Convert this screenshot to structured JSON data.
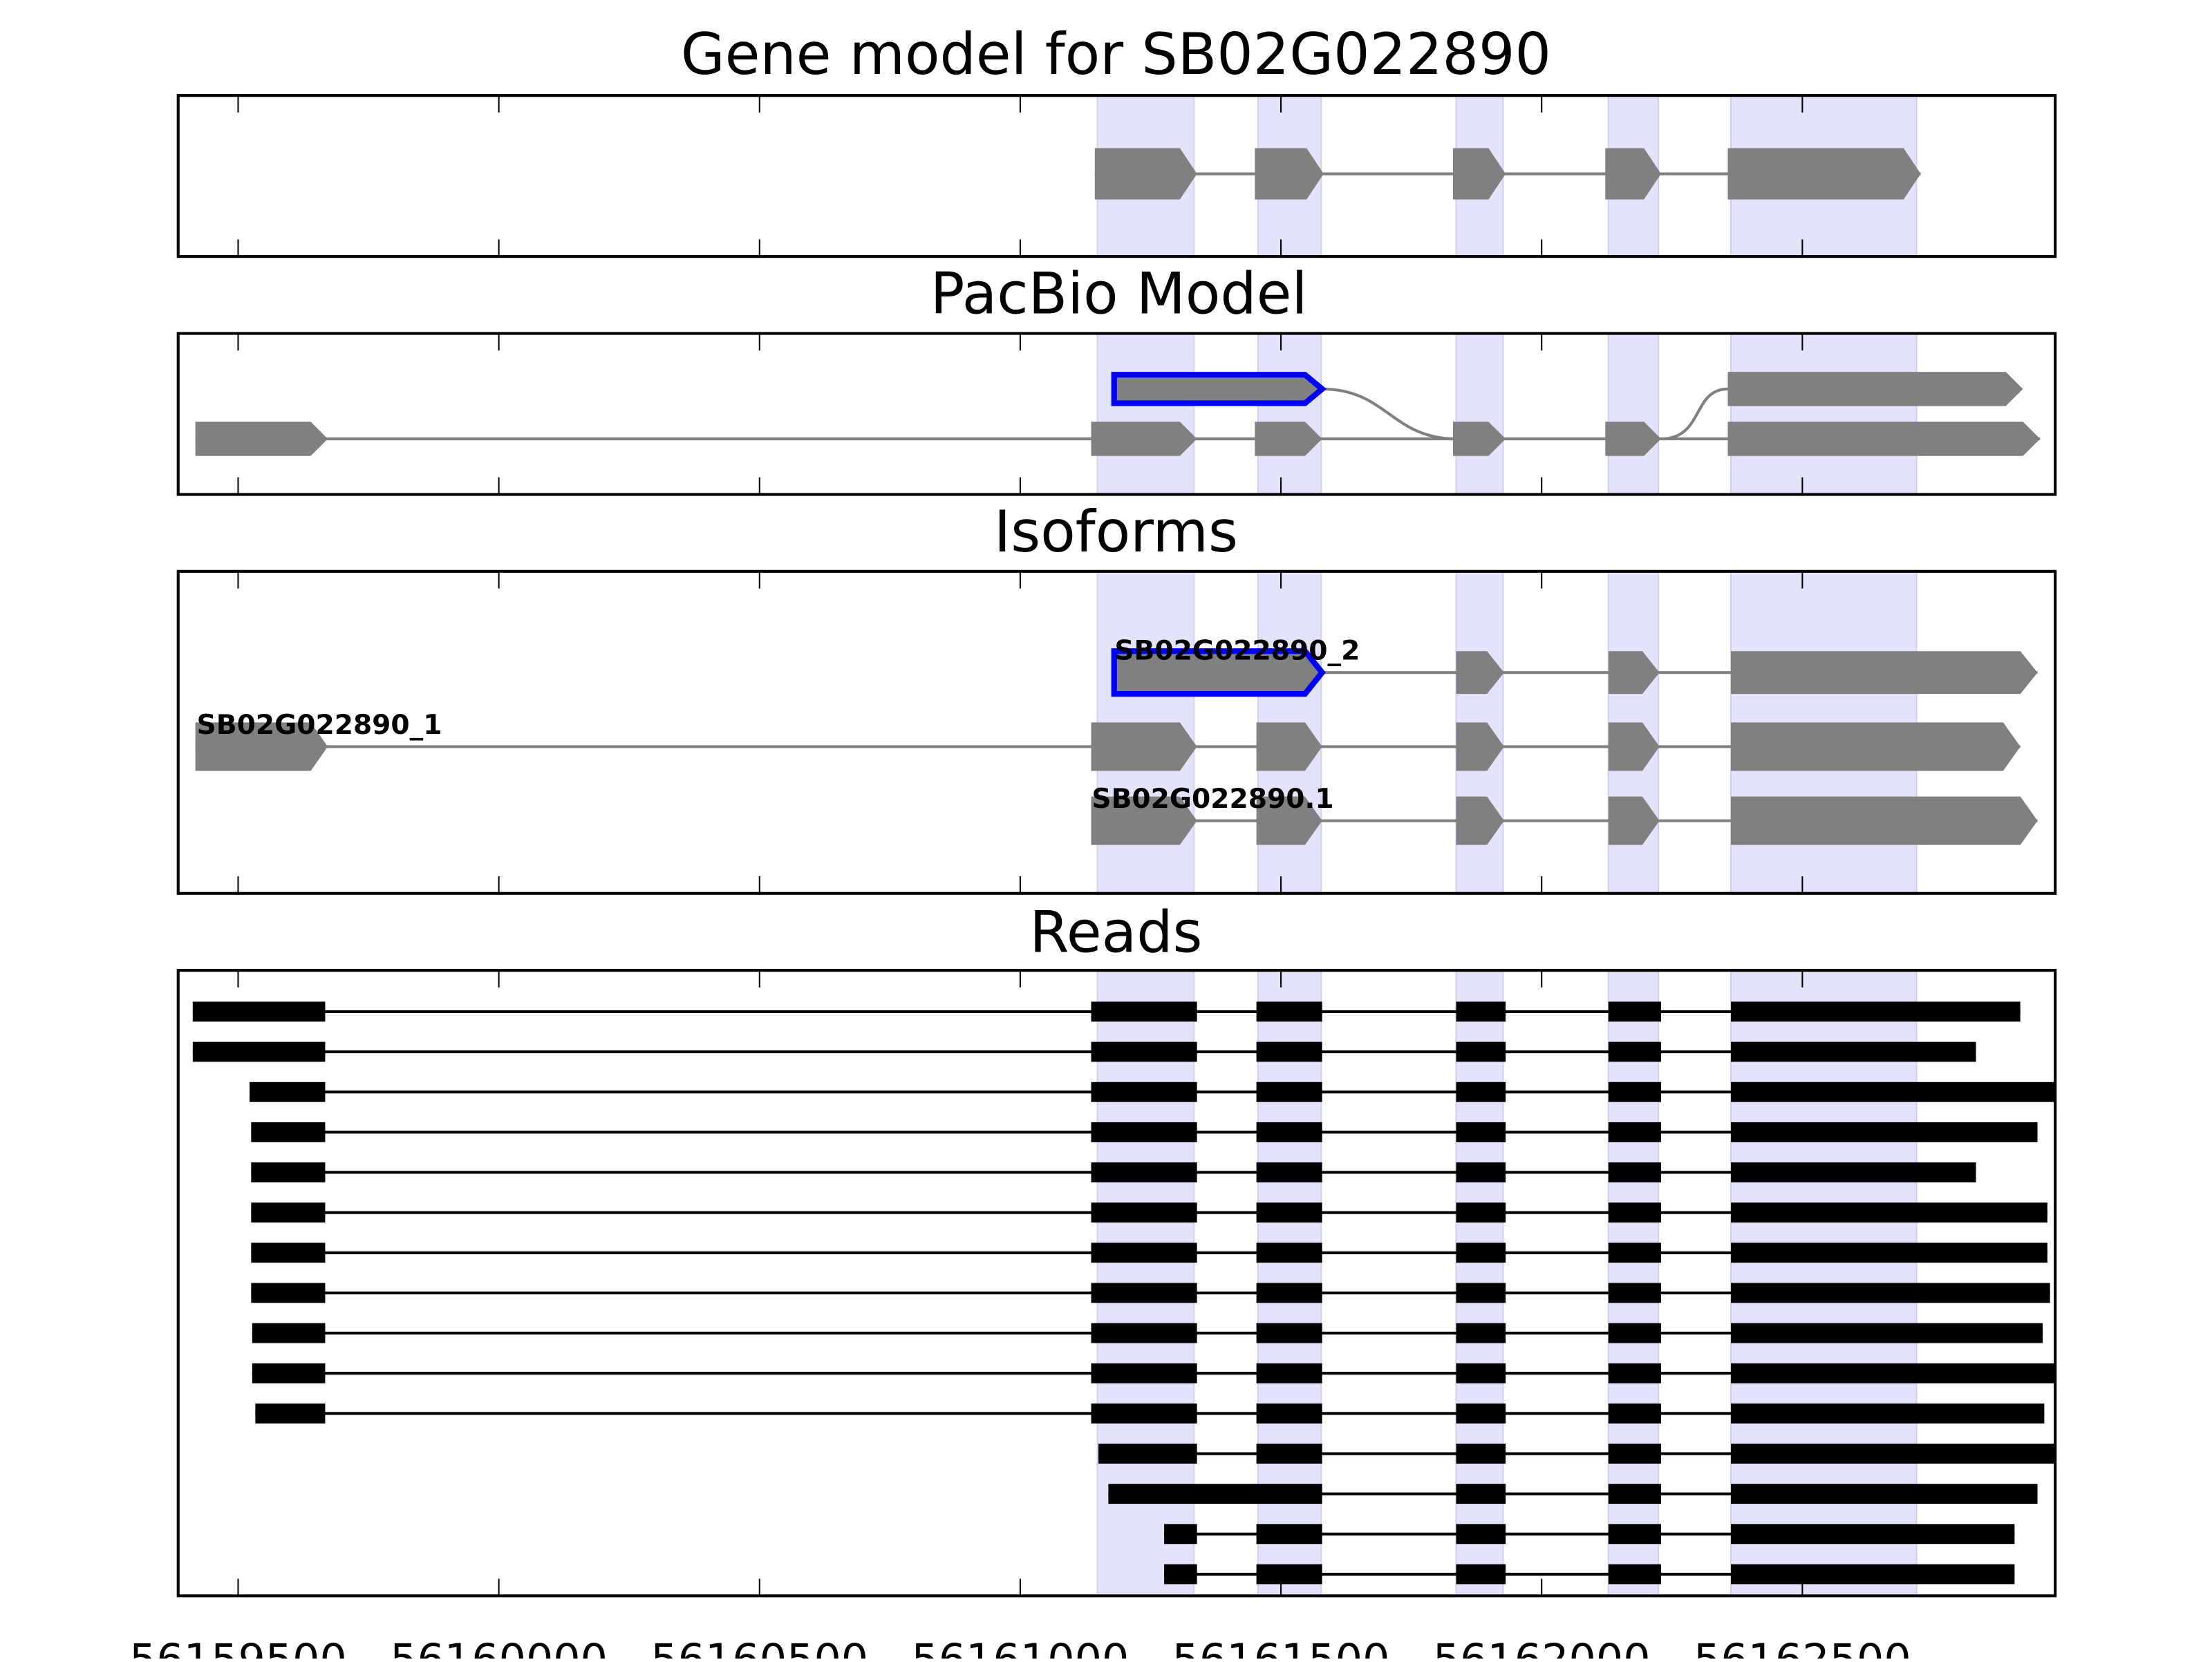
{
  "chart_data": [
    {
      "type": "gene-track",
      "title": "Gene model for SB02G022890",
      "xlim": [
        56159385,
        56162985
      ],
      "xticks": [
        56159500,
        56160000,
        56160500,
        56161000,
        56161500,
        56162000,
        56162500
      ],
      "highlight_color": "#e3e3fc",
      "exon_color": "#808080",
      "highlight_regions": [
        [
          56161148,
          56161333
        ],
        [
          56161456,
          56161577
        ],
        [
          56161836,
          56161926
        ],
        [
          56162128,
          56162224
        ],
        [
          56162363,
          56162719
        ]
      ],
      "transcripts": [
        {
          "exons": [
            [
              56161143,
              56161339
            ],
            [
              56161450,
              56161582
            ],
            [
              56161830,
              56161931
            ],
            [
              56162122,
              56162229
            ],
            [
              56162357,
              56162727
            ]
          ]
        }
      ]
    },
    {
      "type": "gene-track",
      "title": "PacBio Model",
      "xlim": [
        56159385,
        56162985
      ],
      "highlight_color": "#e3e3fc",
      "exon_color": "#808080",
      "selected_color": "#0000ff",
      "transcripts": [
        {
          "row": 0,
          "exons": [
            [
              56161180,
              56161579
            ],
            [
              56162357,
              56162923
            ]
          ],
          "selected_exon": 0
        },
        {
          "row": 1,
          "exons": [
            [
              56159418,
              56159672
            ],
            [
              56161136,
              56161339
            ],
            [
              56161450,
              56161579
            ],
            [
              56161830,
              56161931
            ],
            [
              56162122,
              56162229
            ],
            [
              56162357,
              56162956
            ]
          ]
        }
      ]
    },
    {
      "type": "gene-track",
      "title": "Isoforms",
      "xlim": [
        56159385,
        56162985
      ],
      "highlight_color": "#e3e3fc",
      "exon_color": "#808080",
      "selected_color": "#0000ff",
      "transcripts": [
        {
          "label": "SB02G022890_2",
          "exons": [
            [
              56161180,
              56161579
            ],
            [
              56161836,
              56161928
            ],
            [
              56162128,
              56162226
            ],
            [
              56162363,
              56162951
            ]
          ],
          "selected_exon": 0
        },
        {
          "label": "SB02G022890_1",
          "exons": [
            [
              56159418,
              56159672
            ],
            [
              56161136,
              56161339
            ],
            [
              56161453,
              56161579
            ],
            [
              56161836,
              56161928
            ],
            [
              56162128,
              56162226
            ],
            [
              56162363,
              56162918
            ]
          ]
        },
        {
          "label": "SB02G022890.1",
          "exons": [
            [
              56161136,
              56161339
            ],
            [
              56161453,
              56161579
            ],
            [
              56161836,
              56161928
            ],
            [
              56162128,
              56162226
            ],
            [
              56162363,
              56162951
            ]
          ]
        }
      ]
    },
    {
      "type": "reads",
      "title": "Reads",
      "xlim": [
        56159385,
        56162985
      ],
      "xticks": [
        56159500,
        56160000,
        56160500,
        56161000,
        56161500,
        56162000,
        56162500
      ],
      "xtick_labels": [
        "56159500",
        "56160000",
        "56160500",
        "56161000",
        "56161500",
        "56162000",
        "56162500"
      ],
      "highlight_color": "#e3e3fc",
      "read_color": "#000000",
      "reads": [
        {
          "exons": [
            [
              56159413,
              56159667
            ],
            [
              56161136,
              56161339
            ],
            [
              56161453,
              56161579
            ],
            [
              56161836,
              56161931
            ],
            [
              56162128,
              56162229
            ],
            [
              56162363,
              56162918
            ]
          ]
        },
        {
          "exons": [
            [
              56159413,
              56159667
            ],
            [
              56161136,
              56161339
            ],
            [
              56161453,
              56161579
            ],
            [
              56161836,
              56161931
            ],
            [
              56162128,
              56162229
            ],
            [
              56162363,
              56162833
            ]
          ]
        },
        {
          "exons": [
            [
              56159522,
              56159667
            ],
            [
              56161136,
              56161339
            ],
            [
              56161453,
              56161579
            ],
            [
              56161836,
              56161931
            ],
            [
              56162128,
              56162229
            ],
            [
              56162363,
              56162983
            ]
          ]
        },
        {
          "exons": [
            [
              56159525,
              56159667
            ],
            [
              56161136,
              56161339
            ],
            [
              56161453,
              56161579
            ],
            [
              56161836,
              56161931
            ],
            [
              56162128,
              56162229
            ],
            [
              56162363,
              56162951
            ]
          ]
        },
        {
          "exons": [
            [
              56159525,
              56159667
            ],
            [
              56161136,
              56161339
            ],
            [
              56161453,
              56161579
            ],
            [
              56161836,
              56161931
            ],
            [
              56162128,
              56162229
            ],
            [
              56162363,
              56162833
            ]
          ]
        },
        {
          "exons": [
            [
              56159525,
              56159667
            ],
            [
              56161136,
              56161339
            ],
            [
              56161453,
              56161579
            ],
            [
              56161836,
              56161931
            ],
            [
              56162128,
              56162229
            ],
            [
              56162363,
              56162970
            ]
          ]
        },
        {
          "exons": [
            [
              56159525,
              56159667
            ],
            [
              56161136,
              56161339
            ],
            [
              56161453,
              56161579
            ],
            [
              56161836,
              56161931
            ],
            [
              56162128,
              56162229
            ],
            [
              56162363,
              56162970
            ]
          ]
        },
        {
          "exons": [
            [
              56159525,
              56159667
            ],
            [
              56161136,
              56161339
            ],
            [
              56161453,
              56161579
            ],
            [
              56161836,
              56161931
            ],
            [
              56162128,
              56162229
            ],
            [
              56162363,
              56162975
            ]
          ]
        },
        {
          "exons": [
            [
              56159527,
              56159667
            ],
            [
              56161136,
              56161339
            ],
            [
              56161453,
              56161579
            ],
            [
              56161836,
              56161931
            ],
            [
              56162128,
              56162229
            ],
            [
              56162363,
              56162961
            ]
          ]
        },
        {
          "exons": [
            [
              56159527,
              56159667
            ],
            [
              56161136,
              56161339
            ],
            [
              56161453,
              56161579
            ],
            [
              56161836,
              56161931
            ],
            [
              56162128,
              56162229
            ],
            [
              56162363,
              56162983
            ]
          ]
        },
        {
          "exons": [
            [
              56159533,
              56159667
            ],
            [
              56161136,
              56161339
            ],
            [
              56161453,
              56161579
            ],
            [
              56161836,
              56161931
            ],
            [
              56162128,
              56162229
            ],
            [
              56162363,
              56162964
            ]
          ]
        },
        {
          "exons": [
            [
              56161150,
              56161339
            ],
            [
              56161453,
              56161579
            ],
            [
              56161836,
              56161931
            ],
            [
              56162128,
              56162229
            ],
            [
              56162363,
              56162983
            ]
          ]
        },
        {
          "exons": [
            [
              56161169,
              56161579
            ],
            [
              56161836,
              56161931
            ],
            [
              56162128,
              56162229
            ],
            [
              56162363,
              56162951
            ]
          ]
        },
        {
          "exons": [
            [
              56161276,
              56161339
            ],
            [
              56161453,
              56161579
            ],
            [
              56161836,
              56161931
            ],
            [
              56162128,
              56162229
            ],
            [
              56162363,
              56162907
            ]
          ]
        },
        {
          "exons": [
            [
              56161276,
              56161339
            ],
            [
              56161453,
              56161579
            ],
            [
              56161836,
              56161931
            ],
            [
              56162128,
              56162229
            ],
            [
              56162363,
              56162907
            ]
          ]
        }
      ]
    }
  ]
}
